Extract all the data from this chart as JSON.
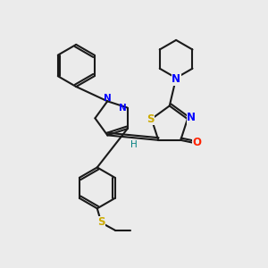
{
  "background_color": "#ebebeb",
  "bond_color": "#1a1a1a",
  "N_color": "#0000ff",
  "S_color": "#ccaa00",
  "O_color": "#ff2200",
  "H_color": "#008080",
  "line_width": 1.5,
  "figsize": [
    3.0,
    3.0
  ],
  "dpi": 100,
  "xlim": [
    0,
    10
  ],
  "ylim": [
    0,
    10
  ]
}
